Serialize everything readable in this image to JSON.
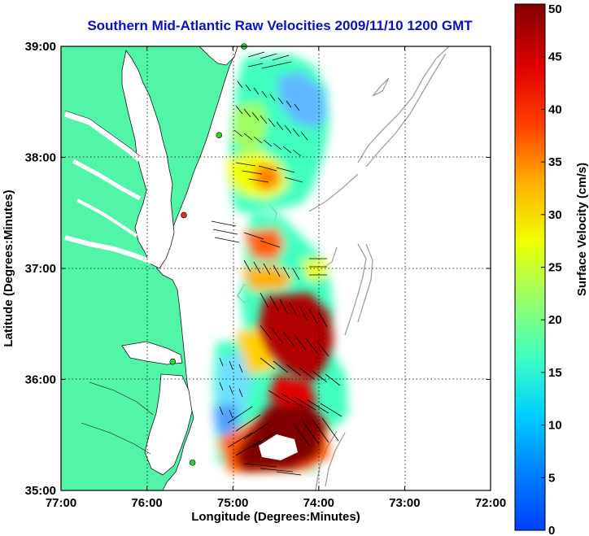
{
  "title": "Southern Mid-Atlantic Raw Velocities 2009/11/10 1200 GMT",
  "x_axis": {
    "label": "Longitude (Degrees:Minutes)",
    "ticks": [
      "77:00",
      "76:00",
      "75:00",
      "74:00",
      "73:00",
      "72:00"
    ]
  },
  "y_axis": {
    "label": "Latitude (Degrees:Minutes)",
    "ticks": [
      "39:00",
      "38:00",
      "37:00",
      "36:00",
      "35:00"
    ]
  },
  "colorbar": {
    "label": "Surface Velocity (cm/s)",
    "ticks": [
      "50",
      "45",
      "40",
      "35",
      "30",
      "25",
      "20",
      "15",
      "10",
      "5",
      "0"
    ],
    "min": 0,
    "max": 50,
    "colormap": "jet"
  },
  "colors": {
    "land": "#52f5a8",
    "water": "#ffffff",
    "title": "#0a10c8",
    "grid": "#000000",
    "bathymetry": "#a0a0a0",
    "station": "#30d030",
    "station_offline": "#e03020"
  },
  "extent": {
    "lon": [
      -77,
      -72
    ],
    "lat": [
      35,
      39
    ]
  },
  "grid": "dotted",
  "stations": [
    {
      "lon": -74.87,
      "lat": 39.0,
      "status": "active"
    },
    {
      "lon": -75.16,
      "lat": 38.2,
      "status": "active"
    },
    {
      "lon": -75.57,
      "lat": 37.48,
      "status": "offline"
    },
    {
      "lon": -75.7,
      "lat": 36.16,
      "status": "active"
    },
    {
      "lon": -75.47,
      "lat": 35.25,
      "status": "active"
    }
  ]
}
